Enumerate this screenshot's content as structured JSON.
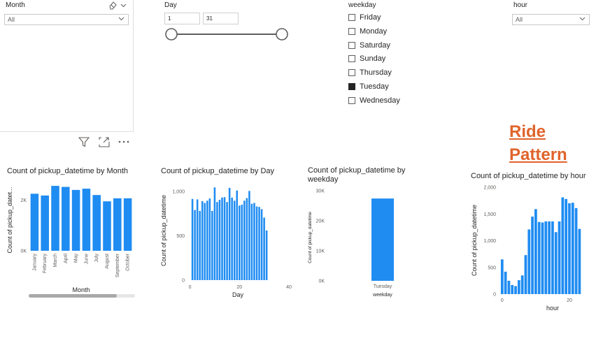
{
  "slicers": {
    "month": {
      "title": "Month",
      "selected": "All"
    },
    "day": {
      "title": "Day",
      "min": "1",
      "max": "31"
    },
    "weekday": {
      "title": "weekday",
      "options": [
        {
          "label": "Friday",
          "checked": false
        },
        {
          "label": "Monday",
          "checked": false
        },
        {
          "label": "Saturday",
          "checked": false
        },
        {
          "label": "Sunday",
          "checked": false
        },
        {
          "label": "Thursday",
          "checked": false
        },
        {
          "label": "Tuesday",
          "checked": true
        },
        {
          "label": "Wednesday",
          "checked": false
        }
      ]
    },
    "hour": {
      "title": "hour",
      "selected": "All"
    }
  },
  "heading": {
    "line1": "Ride",
    "line2": "Pattern"
  },
  "colors": {
    "bar": "#1f8cf2",
    "heading": "#e0642b",
    "scroll": "#a8a8a8"
  },
  "icons": [
    "eraser-icon",
    "chevron-down-icon",
    "filter-icon",
    "focus-mode-icon",
    "more-options-icon"
  ],
  "chart_data": [
    {
      "type": "bar",
      "title": "Count of pickup_datetime by Month",
      "xlabel": "Month",
      "ylabel": "Count of pickup_datet...",
      "categories": [
        "January",
        "February",
        "March",
        "April",
        "May",
        "June",
        "July",
        "August",
        "September",
        "October"
      ],
      "values": [
        2250,
        2180,
        2560,
        2520,
        2400,
        2450,
        2200,
        1950,
        2070,
        2070
      ],
      "ylim": [
        0,
        2700
      ],
      "yticks": [
        0,
        2000
      ],
      "ytick_labels": [
        "0K",
        "2K"
      ]
    },
    {
      "type": "bar",
      "title": "Count of pickup_datetime by Day",
      "xlabel": "Day",
      "ylabel": "Count of pickup_datetime",
      "x": [
        1,
        2,
        3,
        4,
        5,
        6,
        7,
        8,
        9,
        10,
        11,
        12,
        13,
        14,
        15,
        16,
        17,
        18,
        19,
        20,
        21,
        22,
        23,
        24,
        25,
        26,
        27,
        28,
        29,
        30,
        31
      ],
      "values": [
        915,
        790,
        910,
        780,
        890,
        870,
        895,
        920,
        780,
        1045,
        880,
        905,
        930,
        935,
        880,
        1040,
        930,
        895,
        1010,
        840,
        850,
        895,
        925,
        1005,
        860,
        870,
        830,
        825,
        800,
        705,
        560
      ],
      "xlim": [
        -1,
        40
      ],
      "xticks": [
        0,
        20,
        40
      ],
      "ylim": [
        0,
        1110
      ],
      "yticks": [
        0,
        500,
        1000
      ],
      "ytick_labels": [
        "0",
        "500",
        "1,000"
      ]
    },
    {
      "type": "bar",
      "title": "Count of pickup_datetime by weekday",
      "xlabel": "weekday",
      "ylabel": "Count of pickup_datetime",
      "categories": [
        "Tuesday"
      ],
      "values": [
        27400
      ],
      "ylim": [
        0,
        30000
      ],
      "yticks": [
        0,
        10000,
        20000,
        30000
      ],
      "ytick_labels": [
        "0K",
        "10K",
        "20K",
        "30K"
      ]
    },
    {
      "type": "bar",
      "title": "Count of pickup_datetime by hour",
      "xlabel": "hour",
      "ylabel": "Count of pickup_datetime",
      "x": [
        0,
        1,
        2,
        3,
        4,
        5,
        6,
        7,
        8,
        9,
        10,
        11,
        12,
        13,
        14,
        15,
        16,
        17,
        18,
        19,
        20,
        21,
        22,
        23
      ],
      "values": [
        650,
        420,
        250,
        170,
        150,
        260,
        350,
        730,
        1210,
        1450,
        1590,
        1350,
        1340,
        1360,
        1360,
        1360,
        1160,
        1360,
        1810,
        1780,
        1700,
        1710,
        1610,
        1220
      ],
      "xlim": [
        -1,
        25
      ],
      "xticks": [
        0,
        20
      ],
      "ylim": [
        0,
        2000
      ],
      "yticks": [
        0,
        500,
        1000,
        1500,
        2000
      ],
      "ytick_labels": [
        "0",
        "500",
        "1,000",
        "1,500",
        "2,000"
      ]
    }
  ]
}
